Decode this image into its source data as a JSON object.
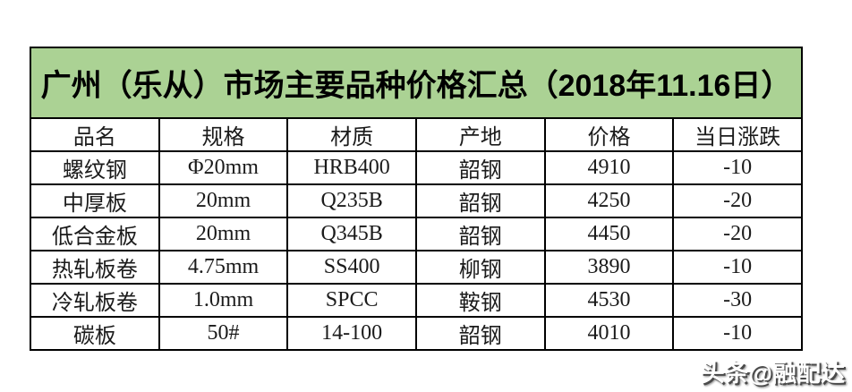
{
  "title": "广州（乐从）市场主要品种价格汇总（2018年11.16日）",
  "table": {
    "headers": [
      "品名",
      "规格",
      "材质",
      "产地",
      "价格",
      "当日涨跌"
    ],
    "rows": [
      [
        "螺纹钢",
        "Φ20mm",
        "HRB400",
        "韶钢",
        "4910",
        "-10"
      ],
      [
        "中厚板",
        "20mm",
        "Q235B",
        "韶钢",
        "4250",
        "-20"
      ],
      [
        "低合金板",
        "20mm",
        "Q345B",
        "韶钢",
        "4450",
        "-20"
      ],
      [
        "热轧板卷",
        "4.75mm",
        "SS400",
        "柳钢",
        "3890",
        "-10"
      ],
      [
        "冷轧板卷",
        "1.0mm",
        "SPCC",
        "鞍钢",
        "4530",
        "-30"
      ],
      [
        "碳板",
        "50#",
        "14-100",
        "韶钢",
        "4010",
        "-10"
      ]
    ]
  },
  "watermark": "头条@融配达",
  "colors": {
    "banner_green": "#abd294",
    "border_black": "#000000",
    "text_black": "#1b1b1b",
    "watermark_white": "#ffffff"
  }
}
